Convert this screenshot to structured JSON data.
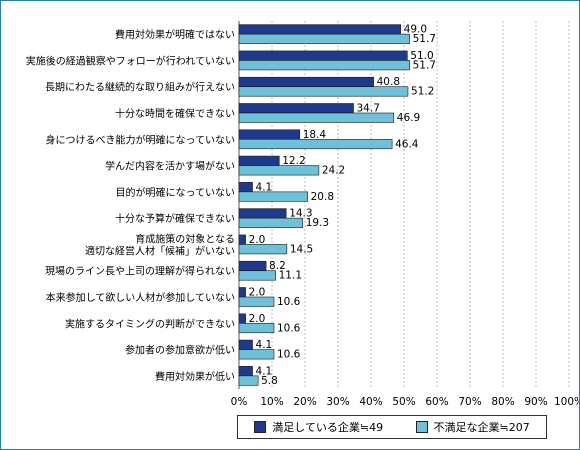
{
  "chart_data": {
    "type": "bar",
    "orientation": "horizontal",
    "categories": [
      [
        "費用対効果が明確ではない"
      ],
      [
        "実施後の経過観察やフォローが行われていない"
      ],
      [
        "長期にわたる継続的な取り組みが行えない"
      ],
      [
        "十分な時間を確保できない"
      ],
      [
        "身につけるべき能力が明確になっていない"
      ],
      [
        "学んだ内容を活かす場がない"
      ],
      [
        "目的が明確になっていない"
      ],
      [
        "十分な予算が確保できない"
      ],
      [
        "育成施策の対象となる",
        "適切な経営人材「候補」がいない"
      ],
      [
        "現場のライン長や上司の理解が得られない"
      ],
      [
        "本来参加して欲しい人材が参加していない"
      ],
      [
        "実施するタイミングの判断ができない"
      ],
      [
        "参加者の参加意欲が低い"
      ],
      [
        "費用対効果が低い"
      ]
    ],
    "series": [
      {
        "name": "満足している企業≒49",
        "color": "#1f3a8a",
        "values": [
          49.0,
          51.0,
          40.8,
          34.7,
          18.4,
          12.2,
          4.1,
          14.3,
          2.0,
          8.2,
          2.0,
          2.0,
          4.1,
          4.1
        ]
      },
      {
        "name": "不満足な企業≒207",
        "color": "#6ec1d8",
        "values": [
          51.7,
          51.7,
          51.2,
          46.9,
          46.4,
          24.2,
          20.8,
          19.3,
          14.5,
          11.1,
          10.6,
          10.6,
          10.6,
          5.8
        ]
      }
    ],
    "xlim": [
      0,
      100
    ],
    "xticks": [
      "0%",
      "10%",
      "20%",
      "30%",
      "40%",
      "50%",
      "60%",
      "70%",
      "80%",
      "90%",
      "100%"
    ],
    "grid": true,
    "legend_position": "bottom"
  }
}
